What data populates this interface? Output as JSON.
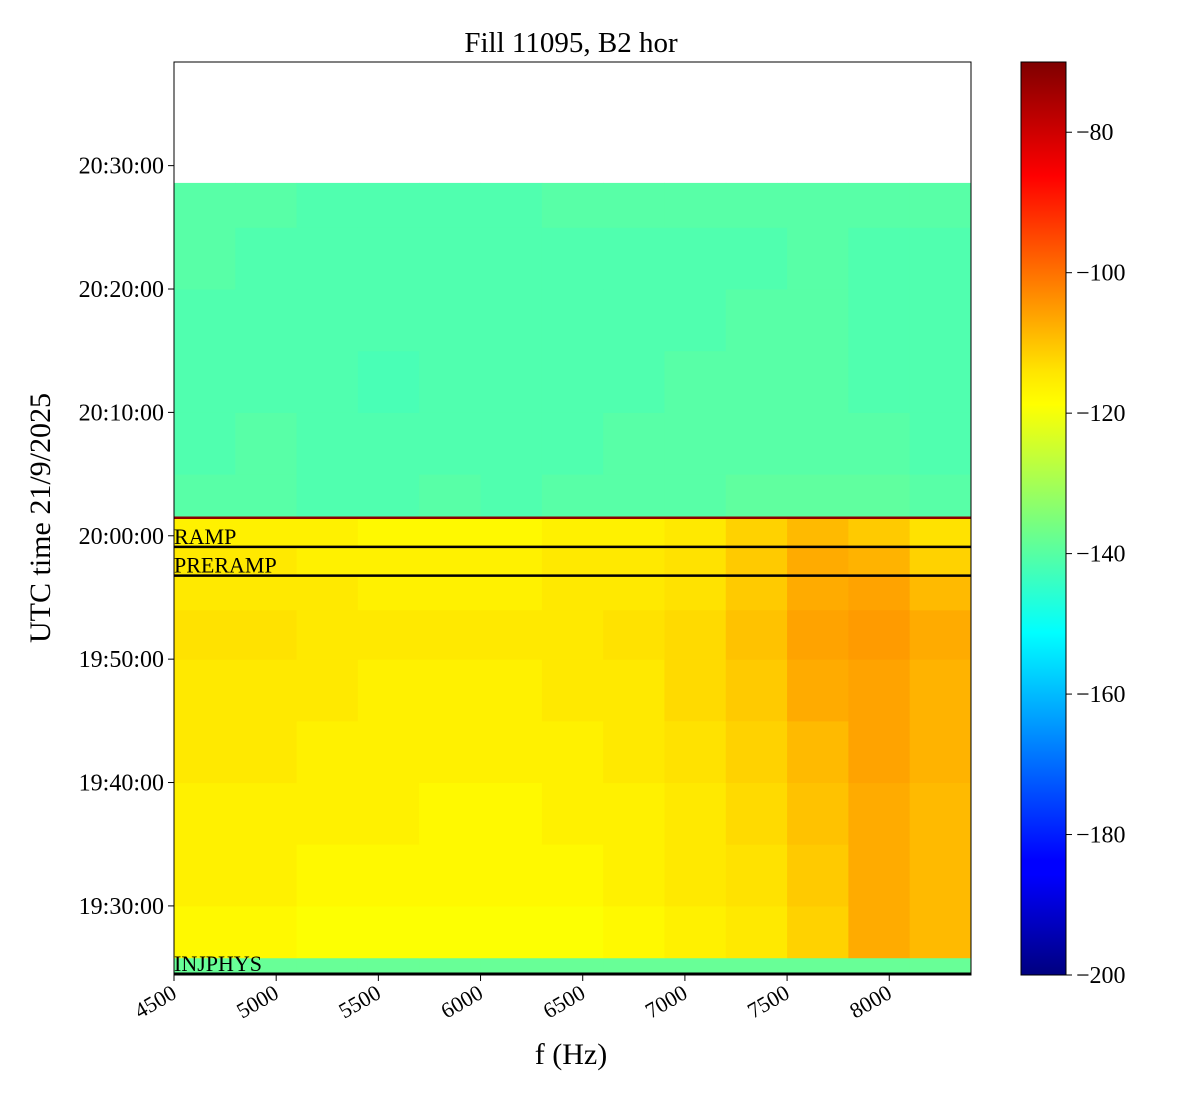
{
  "chart_data": {
    "type": "heatmap",
    "title": "Fill 11095, B2 hor",
    "x_label": "f (Hz)",
    "y_label": "UTC time 21/9/2025",
    "xlim": [
      4500,
      8400
    ],
    "xticks": [
      4500,
      5000,
      5500,
      6000,
      6500,
      7000,
      7500,
      8000
    ],
    "ylim": [
      1164.4,
      1238.4
    ],
    "yticks": [
      {
        "value": 1170,
        "label": "19:30:00"
      },
      {
        "value": 1180,
        "label": "19:40:00"
      },
      {
        "value": 1190,
        "label": "19:50:00"
      },
      {
        "value": 1200,
        "label": "20:00:00"
      },
      {
        "value": 1210,
        "label": "20:10:00"
      },
      {
        "value": 1220,
        "label": "20:20:00"
      },
      {
        "value": 1230,
        "label": "20:30:00"
      }
    ],
    "colormap": "jet",
    "clim": [
      -200,
      -70
    ],
    "cticks": [
      {
        "value": -80,
        "label": "−80"
      },
      {
        "value": -100,
        "label": "−100"
      },
      {
        "value": -120,
        "label": "−120"
      },
      {
        "value": -140,
        "label": "−140"
      },
      {
        "value": -160,
        "label": "−160"
      },
      {
        "value": -180,
        "label": "−180"
      },
      {
        "value": -200,
        "label": "−200"
      }
    ],
    "x_edges": [
      4500,
      4800,
      5100,
      5400,
      5700,
      6000,
      6300,
      6600,
      6900,
      7200,
      7500,
      7800,
      8100,
      8400
    ],
    "y_edges": [
      1164.4,
      1165.8,
      1170,
      1175,
      1180,
      1185,
      1190,
      1194,
      1196.77,
      1199.1,
      1201.46,
      1205,
      1210,
      1215,
      1220,
      1225,
      1228.6
    ],
    "values": [
      [
        -138,
        -138,
        -138,
        -138,
        -138,
        -138,
        -138,
        -138,
        -138,
        -138,
        -138,
        -138,
        -138
      ],
      [
        -118,
        -118,
        -119,
        -119,
        -119,
        -119,
        -119,
        -118,
        -117,
        -116,
        -113,
        -108,
        -110
      ],
      [
        -117,
        -117,
        -118,
        -118,
        -118,
        -118,
        -118,
        -117,
        -116,
        -115,
        -112,
        -108,
        -110
      ],
      [
        -117,
        -117,
        -117,
        -117,
        -118,
        -118,
        -117,
        -117,
        -116,
        -114,
        -111,
        -108,
        -110
      ],
      [
        -116,
        -116,
        -117,
        -117,
        -117,
        -117,
        -117,
        -116,
        -115,
        -113,
        -110,
        -107,
        -109
      ],
      [
        -116,
        -116,
        -116,
        -117,
        -117,
        -117,
        -116,
        -116,
        -114,
        -112,
        -108,
        -107,
        -109
      ],
      [
        -115,
        -115,
        -116,
        -116,
        -116,
        -116,
        -116,
        -115,
        -114,
        -111,
        -107,
        -106,
        -108
      ],
      [
        -116,
        -116,
        -116,
        -117,
        -117,
        -117,
        -116,
        -116,
        -115,
        -112,
        -108,
        -107,
        -110
      ],
      [
        -116,
        -116,
        -117,
        -117,
        -117,
        -117,
        -116,
        -116,
        -115,
        -112,
        -108,
        -109,
        -113
      ],
      [
        -117,
        -117,
        -117,
        -118,
        -118,
        -118,
        -117,
        -117,
        -116,
        -113,
        -110,
        -112,
        -115
      ],
      [
        -140,
        -140,
        -141,
        -141,
        -140,
        -141,
        -140,
        -140,
        -140,
        -139,
        -139,
        -139,
        -140
      ],
      [
        -141,
        -140,
        -141,
        -141,
        -141,
        -141,
        -141,
        -140,
        -140,
        -140,
        -140,
        -140,
        -141
      ],
      [
        -141,
        -141,
        -141,
        -142,
        -141,
        -141,
        -141,
        -141,
        -140,
        -140,
        -140,
        -141,
        -141
      ],
      [
        -141,
        -141,
        -141,
        -141,
        -141,
        -141,
        -141,
        -141,
        -141,
        -140,
        -140,
        -141,
        -141
      ],
      [
        -140,
        -141,
        -141,
        -141,
        -141,
        -141,
        -141,
        -141,
        -141,
        -141,
        -140,
        -141,
        -141
      ],
      [
        -140,
        -140,
        -141,
        -141,
        -141,
        -141,
        -140,
        -140,
        -140,
        -140,
        -140,
        -140,
        -140
      ]
    ],
    "markers": [
      {
        "value": 1201.46,
        "color": "#8b0000"
      },
      {
        "value": 1199.1,
        "label": "RAMP",
        "color": "#000000"
      },
      {
        "value": 1196.77,
        "label": "PRERAMP",
        "color": "#000000"
      },
      {
        "value": 1164.5,
        "label": "INJPHYS",
        "color": "#000000"
      }
    ]
  }
}
